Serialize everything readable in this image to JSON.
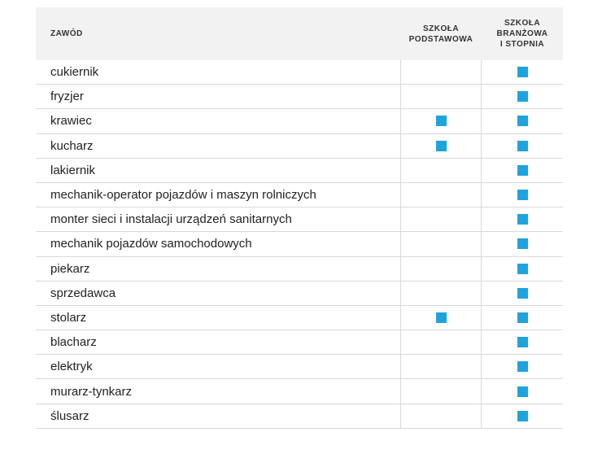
{
  "table": {
    "headers": {
      "profession": "ZAWÓD",
      "primary": "SZKOŁA\nPODSTAWOWA",
      "vocational": "SZKOŁA\nBRANŻOWA\nI STOPNIA"
    },
    "accent_color": "#1fa3dd",
    "rows": [
      {
        "name": "cukiernik",
        "primary": false,
        "vocational": true
      },
      {
        "name": "fryzjer",
        "primary": false,
        "vocational": true
      },
      {
        "name": "krawiec",
        "primary": true,
        "vocational": true
      },
      {
        "name": "kucharz",
        "primary": true,
        "vocational": true
      },
      {
        "name": "lakiernik",
        "primary": false,
        "vocational": true
      },
      {
        "name": "mechanik-operator pojazdów i maszyn rolniczych",
        "primary": false,
        "vocational": true
      },
      {
        "name": "monter sieci i instalacji urządzeń sanitarnych",
        "primary": false,
        "vocational": true
      },
      {
        "name": "mechanik pojazdów samochodowych",
        "primary": false,
        "vocational": true
      },
      {
        "name": "piekarz",
        "primary": false,
        "vocational": true
      },
      {
        "name": "sprzedawca",
        "primary": false,
        "vocational": true
      },
      {
        "name": "stolarz",
        "primary": true,
        "vocational": true
      },
      {
        "name": "blacharz",
        "primary": false,
        "vocational": true
      },
      {
        "name": "elektryk",
        "primary": false,
        "vocational": true
      },
      {
        "name": "murarz-tynkarz",
        "primary": false,
        "vocational": true
      },
      {
        "name": "ślusarz",
        "primary": false,
        "vocational": true
      }
    ]
  }
}
